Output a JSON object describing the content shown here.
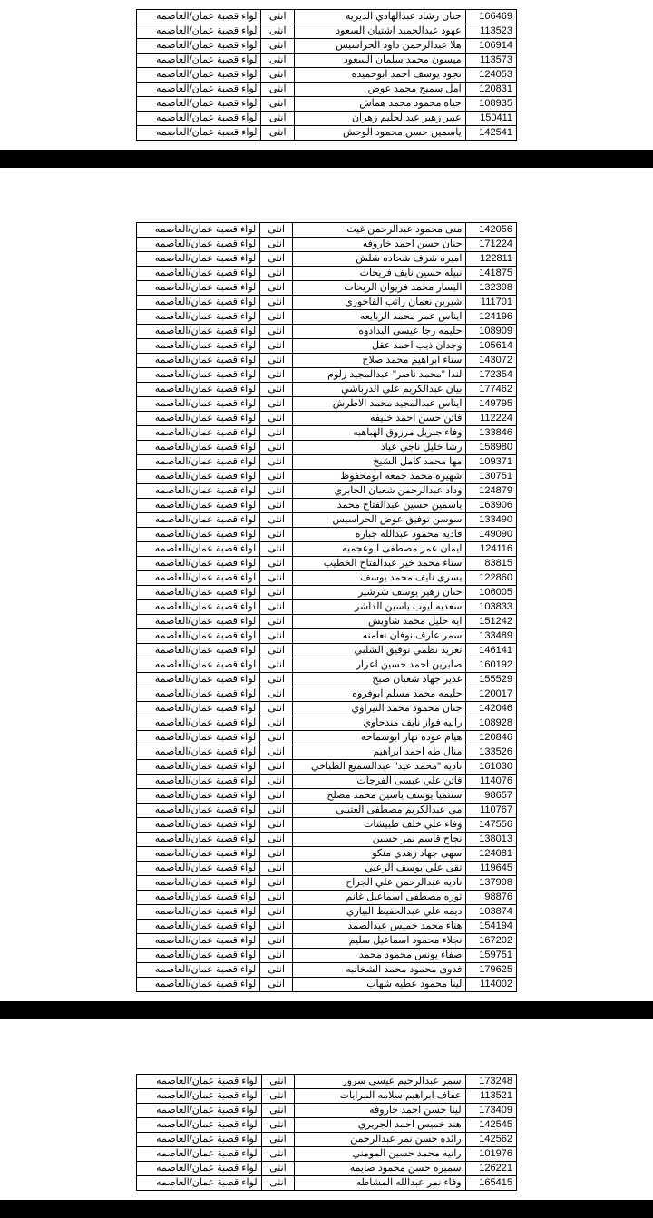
{
  "gender": "انثى",
  "district": "لواء قصبة عمان/العاصمه",
  "page1": [
    {
      "id": "166469",
      "name": "حنان رشاد عبدالهادي الديريه"
    },
    {
      "id": "113523",
      "name": "عهود عبدالحميد اشتيان السعود"
    },
    {
      "id": "106914",
      "name": "هلا عبدالرحمن داود الحراسيس"
    },
    {
      "id": "113573",
      "name": "ميسون محمد سلمان السعود"
    },
    {
      "id": "124053",
      "name": "نجود يوسف احمد ابوحميده"
    },
    {
      "id": "120831",
      "name": "امل سميح محمد عوض"
    },
    {
      "id": "108935",
      "name": "حياه محمود محمد هماش"
    },
    {
      "id": "150411",
      "name": "عبير زهير عبدالحليم زهران"
    },
    {
      "id": "142541",
      "name": "ياسمين حسن محمود الوحش"
    }
  ],
  "page2": [
    {
      "id": "142056",
      "name": "منى محمود عبدالرحمن غيث"
    },
    {
      "id": "171224",
      "name": "حنان حسن احمد خاروفه"
    },
    {
      "id": "122811",
      "name": "اميره شرف شحاده شلش"
    },
    {
      "id": "141875",
      "name": "نبيله حسين نايف فريحات"
    },
    {
      "id": "132398",
      "name": "اليسار محمد فريوان الريحات"
    },
    {
      "id": "111701",
      "name": "شيرين نعمان راتب الفاخوري"
    },
    {
      "id": "124196",
      "name": "ايناس عمر محمد الربايعه"
    },
    {
      "id": "108909",
      "name": "حليمه رجا عيسى البدادوه"
    },
    {
      "id": "105614",
      "name": "وجدان ذيب احمد عقل"
    },
    {
      "id": "143072",
      "name": "سناء ابراهيم محمد صلاح"
    },
    {
      "id": "172354",
      "name": "لندا \"محمد ناصر\" عبدالمجيد زلوم"
    },
    {
      "id": "177462",
      "name": "بيان عبدالكريم علي الدرباشي"
    },
    {
      "id": "149795",
      "name": "ايناس عبدالمجيد محمد الاطرش"
    },
    {
      "id": "112224",
      "name": "فاتن حسن احمد خليفه"
    },
    {
      "id": "133846",
      "name": "وفاء جبريل مرزوق الهباهبه"
    },
    {
      "id": "158980",
      "name": "رشا خليل ناجي عياد"
    },
    {
      "id": "109371",
      "name": "مها محمد كامل الشيخ"
    },
    {
      "id": "130751",
      "name": "شهيره محمد جمعه ابومحفوظ"
    },
    {
      "id": "124879",
      "name": "وداد عبدالرحمن شعبان الجابري"
    },
    {
      "id": "163906",
      "name": "ياسمين حسين عبدالفتاح محمد"
    },
    {
      "id": "133490",
      "name": "سوسن توفيق عوض الحراسيس"
    },
    {
      "id": "149090",
      "name": "فاديه محمود عبدالله جباره"
    },
    {
      "id": "124116",
      "name": "ايمان عمر مصطفى ابوعجميه"
    },
    {
      "id": "83815",
      "name": "سناء محمد خير عبدالفتاح الخطيب"
    },
    {
      "id": "122860",
      "name": "يسرى نايف محمد يوسف"
    },
    {
      "id": "106005",
      "name": "حنان زهير يوسف شرشير"
    },
    {
      "id": "103833",
      "name": "سعديه ايوب ياسين الداشر"
    },
    {
      "id": "151242",
      "name": "ايه خليل محمد شاويش"
    },
    {
      "id": "133489",
      "name": "سمر عارف نوفان نعامنه"
    },
    {
      "id": "146141",
      "name": "تغريد نظمي توفيق الشلبي"
    },
    {
      "id": "160192",
      "name": "صابرين احمد حسين اعرار"
    },
    {
      "id": "155529",
      "name": "غدير جهاد شعبان صبح"
    },
    {
      "id": "120017",
      "name": "حليمه محمد مسلم ابوفروه"
    },
    {
      "id": "142046",
      "name": "جنان محمود محمد النيراوي"
    },
    {
      "id": "108928",
      "name": "رانيه فواز نايف مندحاوي"
    },
    {
      "id": "120846",
      "name": "هيام عوده نهار ابوسماحه"
    },
    {
      "id": "133526",
      "name": "منال طه احمد ابراهيم"
    },
    {
      "id": "161030",
      "name": "ناديه \"محمد عيد\" عبدالسميع الطباخي"
    },
    {
      "id": "114076",
      "name": "فاتن علي عيسى الفرجات"
    },
    {
      "id": "98657",
      "name": "سنتميا يوسف ياسين محمد مصلح"
    },
    {
      "id": "110767",
      "name": "مي عبدالكريم مصطفى العتيبي"
    },
    {
      "id": "147556",
      "name": "وفاء علي خلف طبيشات"
    },
    {
      "id": "138013",
      "name": "نجاح قاسم نمر حسين"
    },
    {
      "id": "124081",
      "name": "سهى جهاد زهدي منكو"
    },
    {
      "id": "119645",
      "name": "تقى علي يوسف الزعبي"
    },
    {
      "id": "137998",
      "name": "ناديه عبدالرحمن علي الجراح"
    },
    {
      "id": "98876",
      "name": "ثوره مصطفى اسماعيل غانم"
    },
    {
      "id": "103874",
      "name": "ديمه علي عبدالحفيظ البياري"
    },
    {
      "id": "154194",
      "name": "هناء محمد خميس عبدالصمد"
    },
    {
      "id": "167202",
      "name": "نجلاء محمود اسماعيل سليم"
    },
    {
      "id": "159751",
      "name": "صفاء يونس محمود محمد"
    },
    {
      "id": "179625",
      "name": "فدوى محمود محمد الشخانبه"
    },
    {
      "id": "114002",
      "name": "لينا محمود عطيه شهاب"
    }
  ],
  "page3": [
    {
      "id": "173248",
      "name": "سمر عبدالرحيم عيسى سرور"
    },
    {
      "id": "113521",
      "name": "عفاف ابراهيم سلامه المرايات"
    },
    {
      "id": "173409",
      "name": "لينا حسن احمد خاروفه"
    },
    {
      "id": "142545",
      "name": "هند خميس احمد الجريري"
    },
    {
      "id": "142562",
      "name": "رائده حسن نمر عبدالرحمن"
    },
    {
      "id": "101976",
      "name": "رانيه محمد حسين المومني"
    },
    {
      "id": "126221",
      "name": "سميره حسن محمود صايمه"
    },
    {
      "id": "165415",
      "name": "وفاء نمر عبدالله المشاطه"
    }
  ]
}
